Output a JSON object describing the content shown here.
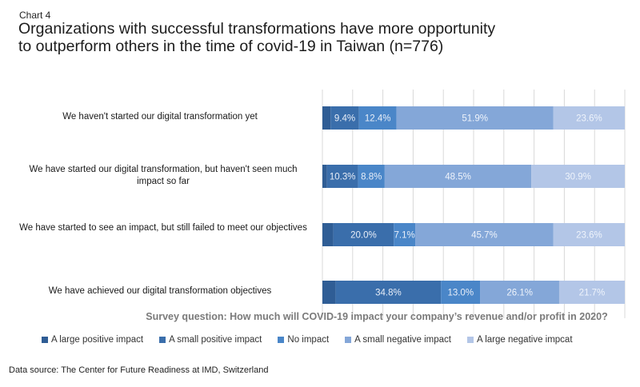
{
  "header": {
    "chart_number": "Chart 4",
    "title_line1": "Organizations with successful transformations have more opportunity",
    "title_line2": "to outperform others in the time of covid-19 in Taiwan (n=776)"
  },
  "footer": {
    "survey_question": "Survey question: How much will COVID-19 impact your company’s revenue and/or profit in 2020?",
    "data_source": "Data source: The Center for Future Readiness at IMD, Switzerland"
  },
  "chart_data": {
    "type": "bar",
    "orientation": "horizontal",
    "stacked": true,
    "percent_stacked": true,
    "title": "Organizations with successful transformations have more opportunity to outperform others in the time of covid-19 in Taiwan (n=776)",
    "xlabel": "",
    "ylabel": "",
    "xlim": [
      0,
      100
    ],
    "grid": true,
    "legend_position": "bottom",
    "categories": [
      "We haven't started our digital transformation yet",
      "We have started our digital transformation, but haven't seen much impact so far",
      "We have started to see an impact, but still failed to meet our objectives",
      "We have achieved our digital transformation objectives"
    ],
    "series": [
      {
        "name": "A large positive impact",
        "color": "#2f5d95",
        "values": [
          2.7,
          1.5,
          3.6,
          4.4
        ],
        "labels": [
          "",
          "",
          "",
          ""
        ]
      },
      {
        "name": "A small positive impact",
        "color": "#3a6eab",
        "values": [
          9.4,
          10.3,
          20.0,
          34.8
        ],
        "labels": [
          "9.4%",
          "10.3%",
          "20.0%",
          "34.8%"
        ]
      },
      {
        "name": "No impact",
        "color": "#4a86c8",
        "values": [
          12.4,
          8.8,
          7.1,
          13.0
        ],
        "labels": [
          "12.4%",
          "8.8%",
          "7.1%",
          "13.0%"
        ]
      },
      {
        "name": "A small negative impact",
        "color": "#84a7d8",
        "values": [
          51.9,
          48.5,
          45.7,
          26.1
        ],
        "labels": [
          "51.9%",
          "48.5%",
          "45.7%",
          "26.1%"
        ]
      },
      {
        "name": "A large negative impcat",
        "color": "#b3c6e7",
        "values": [
          23.6,
          30.9,
          23.6,
          21.7
        ],
        "labels": [
          "23.6%",
          "30.9%",
          "23.6%",
          "21.7%"
        ]
      }
    ]
  }
}
